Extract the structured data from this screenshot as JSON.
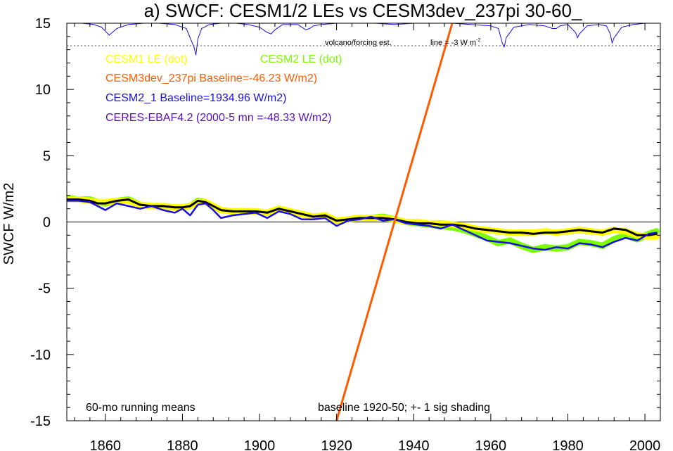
{
  "chart_data": {
    "type": "line",
    "title": "a) SWCF: CESM1/2 LEs vs CESM3dev_237pi 30-60_",
    "xlabel": "",
    "ylabel": "SWCF W/m2",
    "xlim": [
      1850,
      2004
    ],
    "ylim": [
      -15,
      15
    ],
    "x_ticks": [
      1860,
      1880,
      1900,
      1920,
      1940,
      1960,
      1980,
      2000
    ],
    "y_ticks": [
      -15,
      -10,
      -5,
      0,
      5,
      10,
      15
    ],
    "zero_line": true,
    "legend_placement": "top-left",
    "legend": [
      {
        "text": "CESM1 LE (dot)",
        "color": "#ffff00"
      },
      {
        "text": "CESM2 LE (dot)",
        "color": "#7cfc00"
      },
      {
        "text": "CESM3dev_237pi Baseline=-46.23 W/m2)",
        "color": "#ff5a00"
      },
      {
        "text": "CESM2_1 Baseline=1934.96 W/m2)",
        "color": "#1a10e0"
      },
      {
        "text": "CERES-EBAF4.2 (2000-5 mn =-48.33 W/m2)",
        "color": "#5a10b0"
      }
    ],
    "annotations": {
      "volcano_label": "volcano/forcing est.",
      "volcano_line_label": "line = -3 W m",
      "volcano_line_sup": "-2",
      "bottom_left": "60-mo running means",
      "bottom_center": "baseline 1920-50; +- 1 sig shading"
    },
    "volcano_reference_level": 13.3,
    "series": [
      {
        "name": "CESM2 LE (dot)",
        "color": "#7cfc00",
        "style": "band",
        "x": [
          1850,
          1853,
          1856,
          1858,
          1860,
          1863,
          1866,
          1869,
          1872,
          1875,
          1878,
          1880,
          1882,
          1884,
          1886,
          1888,
          1890,
          1893,
          1896,
          1899,
          1902,
          1905,
          1908,
          1911,
          1914,
          1917,
          1920,
          1923,
          1926,
          1929,
          1932,
          1935,
          1938,
          1941,
          1944,
          1947,
          1950,
          1953,
          1956,
          1959,
          1962,
          1965,
          1968,
          1971,
          1974,
          1977,
          1980,
          1983,
          1986,
          1989,
          1992,
          1995,
          1998,
          2001,
          2003
        ],
        "y": [
          1.8,
          1.7,
          1.7,
          1.5,
          1.4,
          1.6,
          1.7,
          1.3,
          1.2,
          1.2,
          1.1,
          1.1,
          1.2,
          1.6,
          1.5,
          1.2,
          0.9,
          0.8,
          0.8,
          0.8,
          0.7,
          1.0,
          0.8,
          0.6,
          0.4,
          0.5,
          0.1,
          0.2,
          0.3,
          0.3,
          0.4,
          0.2,
          0.0,
          -0.1,
          -0.2,
          -0.3,
          -0.4,
          -0.6,
          -0.9,
          -1.2,
          -1.6,
          -1.4,
          -1.8,
          -2.1,
          -1.9,
          -2.0,
          -1.9,
          -1.5,
          -1.6,
          -1.8,
          -1.3,
          -1.0,
          -1.3,
          -0.9,
          -0.7
        ]
      },
      {
        "name": "CESM1 LE (dot)",
        "color": "#ffff00",
        "style": "band",
        "x": [
          1850,
          1853,
          1856,
          1858,
          1860,
          1863,
          1866,
          1869,
          1872,
          1875,
          1878,
          1880,
          1882,
          1884,
          1886,
          1888,
          1890,
          1893,
          1896,
          1899,
          1902,
          1905,
          1908,
          1911,
          1914,
          1917,
          1920,
          1923,
          1926,
          1929,
          1932,
          1935,
          1938,
          1941,
          1944,
          1947,
          1950,
          1953,
          1956,
          1959,
          1962,
          1965,
          1968,
          1971,
          1974,
          1977,
          1980,
          1983,
          1986,
          1989,
          1992,
          1995,
          1998,
          2001,
          2003
        ],
        "y": [
          1.7,
          1.7,
          1.6,
          1.5,
          1.5,
          1.6,
          1.6,
          1.3,
          1.2,
          1.2,
          1.1,
          1.1,
          1.2,
          1.5,
          1.5,
          1.2,
          0.9,
          0.8,
          0.8,
          0.8,
          0.7,
          1.0,
          0.8,
          0.6,
          0.4,
          0.5,
          0.1,
          0.2,
          0.3,
          0.3,
          0.3,
          0.2,
          0.0,
          0.0,
          -0.1,
          -0.1,
          -0.2,
          -0.3,
          -0.5,
          -0.6,
          -0.7,
          -0.8,
          -0.8,
          -0.8,
          -0.7,
          -0.8,
          -0.7,
          -0.6,
          -0.7,
          -0.8,
          -0.6,
          -0.7,
          -1.0,
          -1.1,
          -1.1
        ]
      },
      {
        "name": "ensemble mean",
        "color": "#000000",
        "style": "line",
        "x": [
          1850,
          1853,
          1856,
          1858,
          1860,
          1863,
          1866,
          1869,
          1872,
          1875,
          1878,
          1880,
          1882,
          1884,
          1886,
          1888,
          1890,
          1893,
          1896,
          1899,
          1902,
          1905,
          1908,
          1911,
          1914,
          1917,
          1920,
          1923,
          1926,
          1929,
          1932,
          1935,
          1938,
          1941,
          1944,
          1947,
          1950,
          1953,
          1956,
          1959,
          1962,
          1965,
          1968,
          1971,
          1974,
          1977,
          1980,
          1983,
          1986,
          1989,
          1992,
          1995,
          1998,
          2001,
          2003
        ],
        "y": [
          1.7,
          1.7,
          1.6,
          1.4,
          1.4,
          1.6,
          1.7,
          1.3,
          1.2,
          1.2,
          1.1,
          1.1,
          1.2,
          1.6,
          1.5,
          1.2,
          0.9,
          0.8,
          0.8,
          0.8,
          0.7,
          1.0,
          0.8,
          0.6,
          0.4,
          0.5,
          0.1,
          0.2,
          0.3,
          0.3,
          0.3,
          0.2,
          0.0,
          -0.1,
          -0.1,
          -0.2,
          -0.2,
          -0.3,
          -0.5,
          -0.6,
          -0.7,
          -0.8,
          -0.8,
          -0.9,
          -0.8,
          -0.8,
          -0.7,
          -0.6,
          -0.7,
          -0.8,
          -0.5,
          -0.6,
          -1.0,
          -1.0,
          -0.9
        ]
      },
      {
        "name": "CESM2_1 Baseline=1934.96 W/m2)",
        "color": "#1a10e0",
        "style": "line",
        "x": [
          1850,
          1853,
          1856,
          1858,
          1860,
          1863,
          1866,
          1869,
          1872,
          1875,
          1878,
          1880,
          1882,
          1884,
          1886,
          1888,
          1890,
          1893,
          1896,
          1899,
          1902,
          1905,
          1908,
          1911,
          1914,
          1917,
          1920,
          1923,
          1926,
          1929,
          1932,
          1935,
          1938,
          1941,
          1944,
          1947,
          1950,
          1953,
          1956,
          1959,
          1962,
          1965,
          1968,
          1971,
          1974,
          1977,
          1980,
          1983,
          1986,
          1989,
          1992,
          1995,
          1998,
          2001,
          2003
        ],
        "y": [
          1.6,
          1.6,
          1.5,
          1.2,
          0.9,
          1.4,
          1.2,
          1.0,
          1.2,
          0.9,
          0.7,
          1.0,
          0.5,
          1.3,
          1.4,
          0.9,
          0.3,
          0.5,
          0.6,
          0.7,
          0.3,
          0.8,
          0.6,
          0.2,
          0.2,
          0.3,
          -0.3,
          0.1,
          0.2,
          0.4,
          0.1,
          0.2,
          -0.1,
          -0.2,
          -0.3,
          -0.5,
          -0.2,
          -0.6,
          -1.0,
          -1.4,
          -1.5,
          -1.6,
          -1.8,
          -2.0,
          -2.1,
          -1.9,
          -2.0,
          -1.6,
          -1.7,
          -1.9,
          -1.5,
          -1.2,
          -1.4,
          -0.9,
          -0.8
        ]
      },
      {
        "name": "CESM3dev_237pi Baseline=-46.23 W/m2)",
        "color": "#ff5a00",
        "style": "line",
        "x": [
          1920,
          1950
        ],
        "y": [
          -15,
          15
        ]
      },
      {
        "name": "volcano/forcing est.",
        "color": "#1a10e0",
        "style": "thin",
        "x": [
          1850,
          1854,
          1857,
          1859,
          1860,
          1861,
          1863,
          1866,
          1870,
          1874,
          1878,
          1881,
          1883,
          1883.5,
          1884,
          1885,
          1887,
          1890,
          1894,
          1897,
          1900,
          1902,
          1903,
          1904,
          1906,
          1910,
          1912,
          1913,
          1914,
          1916,
          1920,
          1925,
          1930,
          1935,
          1940,
          1945,
          1950,
          1955,
          1960,
          1962,
          1963,
          1963.5,
          1964,
          1966,
          1970,
          1974,
          1976,
          1977,
          1978,
          1980,
          1982,
          1982.5,
          1983,
          1985,
          1988,
          1990,
          1991,
          1991.5,
          1992,
          1994,
          1997,
          2000,
          2003
        ],
        "y": [
          15,
          15,
          14.9,
          14.7,
          14.4,
          14.1,
          14.6,
          14.9,
          15,
          15,
          14.9,
          14.6,
          13.2,
          12.6,
          13.8,
          14.6,
          14.9,
          15,
          15,
          14.9,
          14.7,
          14.3,
          14.2,
          14.5,
          14.9,
          14.9,
          14.5,
          14.6,
          14.8,
          14.9,
          15,
          15,
          15,
          14.9,
          15,
          15,
          15,
          14.9,
          14.8,
          14.6,
          13.5,
          13.2,
          13.9,
          14.7,
          14.9,
          14.8,
          14.6,
          14.6,
          14.8,
          14.9,
          14.3,
          13.9,
          14.2,
          14.8,
          14.9,
          14.8,
          14.2,
          13.5,
          13.9,
          14.7,
          14.9,
          15,
          15
        ]
      }
    ]
  }
}
